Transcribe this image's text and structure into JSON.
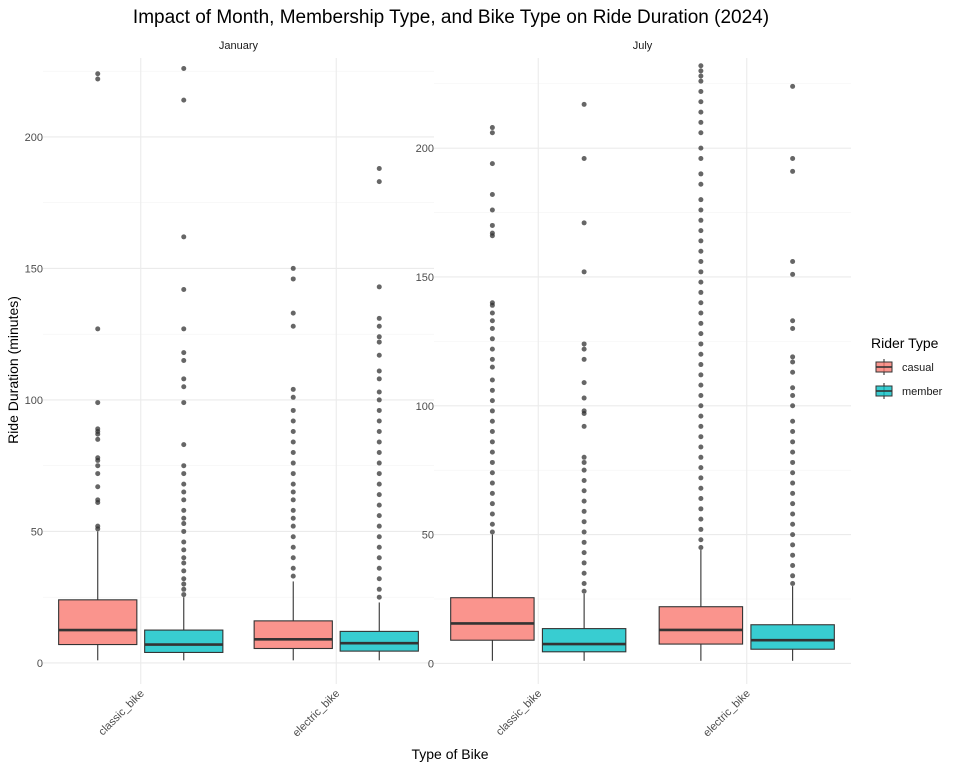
{
  "chart_data": {
    "type": "box",
    "title": "Impact of Month, Membership Type, and Bike Type on Ride Duration (2024)",
    "xlabel": "Type of Bike",
    "ylabel": "Ride Duration (minutes)",
    "categories": [
      "classic_bike",
      "electric_bike"
    ],
    "legend": {
      "title": "Rider Type",
      "position": "right",
      "entries": [
        {
          "name": "casual",
          "color": "#F8766D"
        },
        {
          "name": "member",
          "color": "#00BFC4"
        }
      ]
    },
    "grid": true,
    "facets": [
      {
        "label": "January",
        "ylim": [
          -8,
          230
        ],
        "yticks": [
          0,
          50,
          100,
          150,
          200
        ],
        "groups": [
          {
            "category": "classic_bike",
            "series": "casual",
            "min": 1,
            "q1": 7,
            "median": 12.5,
            "q3": 24,
            "max": 50,
            "outliers": [
              51,
              52,
              61,
              62,
              67,
              72,
              75,
              77,
              78,
              85,
              87,
              88,
              89,
              99,
              127,
              222,
              224
            ]
          },
          {
            "category": "classic_bike",
            "series": "member",
            "min": 1,
            "q1": 4,
            "median": 7,
            "q3": 12.5,
            "max": 25,
            "outliers": [
              26,
              28,
              30,
              32,
              35,
              38,
              40,
              43,
              46,
              50,
              53,
              55,
              58,
              62,
              65,
              68,
              72,
              75,
              83,
              99,
              105,
              108,
              115,
              118,
              127,
              142,
              162,
              214,
              226
            ]
          },
          {
            "category": "electric_bike",
            "series": "casual",
            "min": 1,
            "q1": 5.5,
            "median": 9,
            "q3": 16,
            "max": 31,
            "outliers": [
              33,
              36,
              40,
              44,
              48,
              52,
              55,
              58,
              62,
              65,
              68,
              72,
              76,
              80,
              84,
              88,
              92,
              96,
              101,
              104,
              128,
              133,
              146,
              150
            ]
          },
          {
            "category": "electric_bike",
            "series": "member",
            "min": 1,
            "q1": 4.5,
            "median": 7.5,
            "q3": 12,
            "max": 23,
            "outliers": [
              25,
              28,
              32,
              36,
              40,
              44,
              48,
              52,
              56,
              60,
              64,
              68,
              72,
              76,
              80,
              84,
              88,
              92,
              96,
              100,
              103,
              108,
              111,
              117,
              122,
              124,
              128,
              131,
              143,
              183,
              188
            ]
          }
        ]
      },
      {
        "label": "July",
        "ylim": [
          -8,
          235
        ],
        "yticks": [
          0,
          50,
          100,
          150,
          200
        ],
        "groups": [
          {
            "category": "classic_bike",
            "series": "casual",
            "min": 1,
            "q1": 9,
            "median": 15.5,
            "q3": 25.5,
            "max": 50,
            "outliers": [
              51,
              54,
              58,
              62,
              66,
              70,
              74,
              78,
              82,
              86,
              90,
              94,
              98,
              102,
              106,
              110,
              115,
              118,
              122,
              126,
              130,
              133,
              136,
              139,
              140,
              166,
              167,
              170,
              176,
              182,
              194,
              206,
              208
            ]
          },
          {
            "category": "classic_bike",
            "series": "member",
            "min": 1,
            "q1": 4.5,
            "median": 7.5,
            "q3": 13.5,
            "max": 27,
            "outliers": [
              28,
              31,
              35,
              39,
              43,
              47,
              51,
              55,
              59,
              63,
              67,
              71,
              75,
              78,
              80,
              92,
              97,
              98,
              103,
              109,
              118,
              122,
              124,
              152,
              171,
              196,
              217
            ]
          },
          {
            "category": "electric_bike",
            "series": "casual",
            "min": 1,
            "q1": 7.5,
            "median": 13,
            "q3": 22,
            "max": 44,
            "outliers": [
              45,
              48,
              52,
              56,
              60,
              64,
              68,
              72,
              76,
              80,
              84,
              88,
              92,
              96,
              100,
              104,
              108,
              112,
              116,
              120,
              124,
              128,
              132,
              136,
              140,
              144,
              148,
              152,
              156,
              160,
              164,
              168,
              172,
              176,
              180,
              186,
              190,
              196,
              200,
              206,
              210,
              214,
              218,
              222,
              226,
              228,
              230,
              232
            ]
          },
          {
            "category": "electric_bike",
            "series": "member",
            "min": 1,
            "q1": 5.5,
            "median": 9,
            "q3": 15,
            "max": 30,
            "outliers": [
              31,
              34,
              38,
              42,
              46,
              50,
              54,
              58,
              62,
              66,
              70,
              74,
              78,
              82,
              86,
              90,
              94,
              100,
              104,
              107,
              113,
              117,
              119,
              130,
              133,
              151,
              156,
              191,
              196,
              224
            ]
          }
        ]
      }
    ]
  }
}
